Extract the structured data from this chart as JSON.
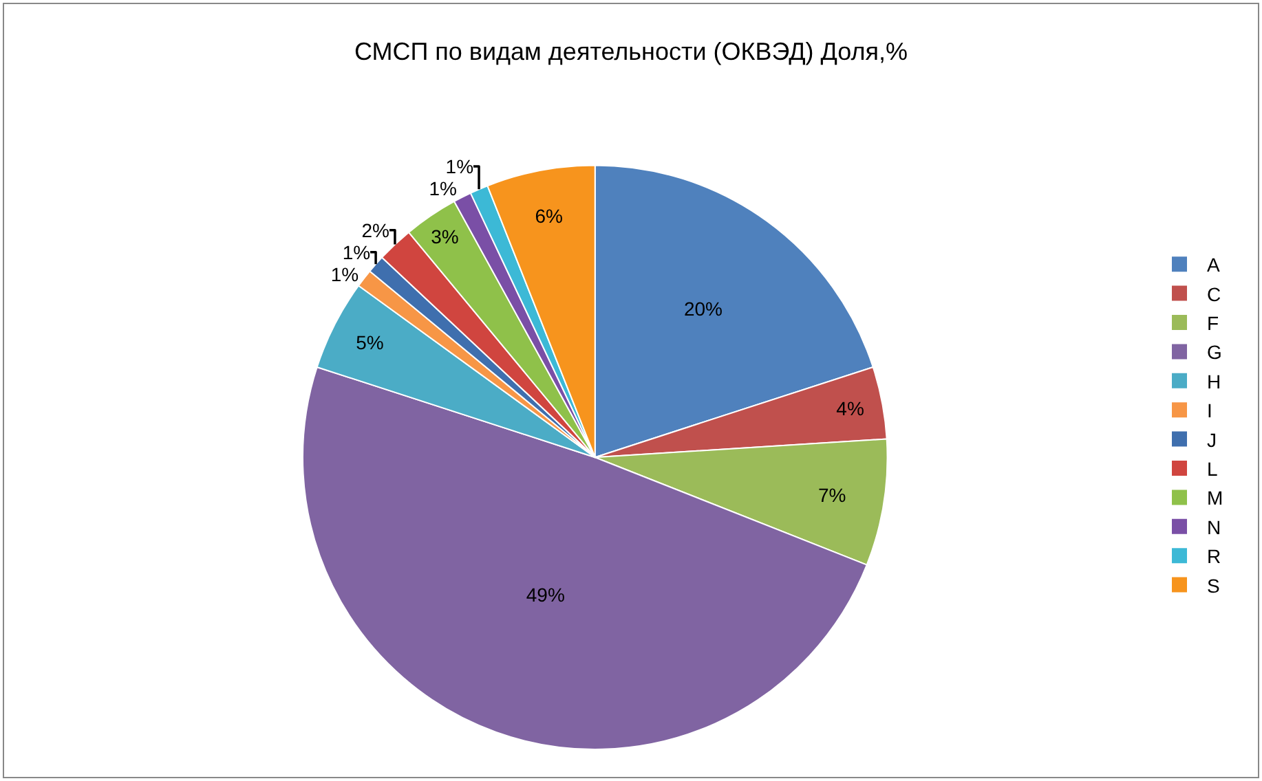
{
  "chart_data": {
    "type": "pie",
    "title": "СМСП по видам деятельности (ОКВЭД) Доля,%",
    "categories": [
      "A",
      "C",
      "F",
      "G",
      "H",
      "I",
      "J",
      "L",
      "M",
      "N",
      "R",
      "S"
    ],
    "values": [
      20,
      4,
      7,
      49,
      5,
      1,
      1,
      2,
      3,
      1,
      1,
      6
    ],
    "colors": [
      "#4f81bd",
      "#c0504d",
      "#9bbb59",
      "#8064a2",
      "#4bacc6",
      "#f79646",
      "#3f6fae",
      "#d0453f",
      "#8fc14a",
      "#7a4fa6",
      "#3cb9d6",
      "#f7941d"
    ],
    "value_labels": [
      "20%",
      "4%",
      "7%",
      "49%",
      "5%",
      "1%",
      "1%",
      "2%",
      "3%",
      "1%",
      "1%",
      "6%"
    ],
    "legend": "right"
  }
}
